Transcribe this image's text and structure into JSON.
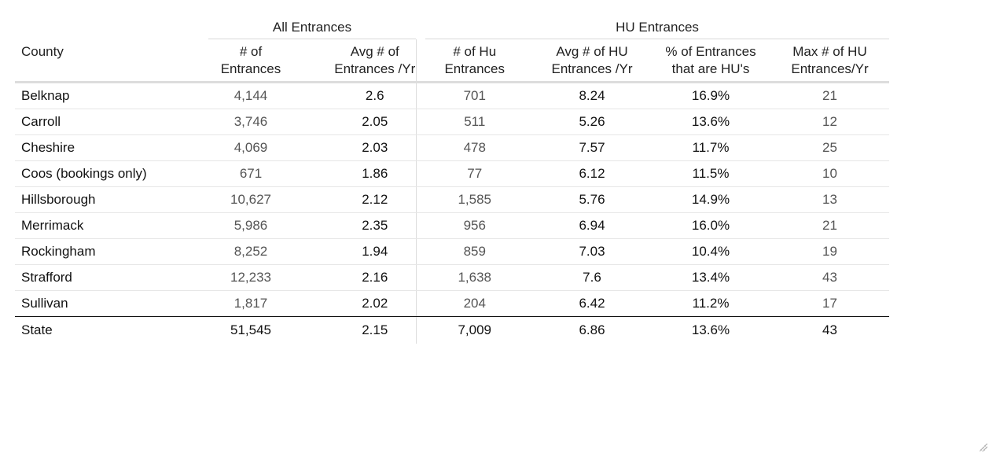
{
  "chart_data": {
    "type": "table",
    "column_groups": [
      {
        "label": "All Entrances"
      },
      {
        "label": "HU Entrances"
      }
    ],
    "columns": [
      {
        "lines": [
          "County"
        ]
      },
      {
        "lines": [
          "# of",
          "Entrances"
        ]
      },
      {
        "lines": [
          "Avg # of",
          "Entrances /Yr"
        ]
      },
      {
        "lines": [
          "# of Hu",
          "Entrances"
        ]
      },
      {
        "lines": [
          "Avg # of HU",
          "Entrances /Yr"
        ]
      },
      {
        "lines": [
          "% of Entrances",
          "that are HU's"
        ]
      },
      {
        "lines": [
          "Max # of HU",
          "Entrances/Yr"
        ]
      }
    ],
    "rows": [
      {
        "county": "Belknap",
        "entrances": "4,144",
        "avg_entrances_yr": "2.6",
        "hu_entrances": "701",
        "avg_hu_entrances_yr": "8.24",
        "pct_hu": "16.9%",
        "max_hu_yr": "21"
      },
      {
        "county": "Carroll",
        "entrances": "3,746",
        "avg_entrances_yr": "2.05",
        "hu_entrances": "511",
        "avg_hu_entrances_yr": "5.26",
        "pct_hu": "13.6%",
        "max_hu_yr": "12"
      },
      {
        "county": "Cheshire",
        "entrances": "4,069",
        "avg_entrances_yr": "2.03",
        "hu_entrances": "478",
        "avg_hu_entrances_yr": "7.57",
        "pct_hu": "11.7%",
        "max_hu_yr": "25"
      },
      {
        "county": "Coos (bookings only)",
        "entrances": "671",
        "avg_entrances_yr": "1.86",
        "hu_entrances": "77",
        "avg_hu_entrances_yr": "6.12",
        "pct_hu": "11.5%",
        "max_hu_yr": "10"
      },
      {
        "county": "Hillsborough",
        "entrances": "10,627",
        "avg_entrances_yr": "2.12",
        "hu_entrances": "1,585",
        "avg_hu_entrances_yr": "5.76",
        "pct_hu": "14.9%",
        "max_hu_yr": "13"
      },
      {
        "county": "Merrimack",
        "entrances": "5,986",
        "avg_entrances_yr": "2.35",
        "hu_entrances": "956",
        "avg_hu_entrances_yr": "6.94",
        "pct_hu": "16.0%",
        "max_hu_yr": "21"
      },
      {
        "county": "Rockingham",
        "entrances": "8,252",
        "avg_entrances_yr": "1.94",
        "hu_entrances": "859",
        "avg_hu_entrances_yr": "7.03",
        "pct_hu": "10.4%",
        "max_hu_yr": "19"
      },
      {
        "county": "Strafford",
        "entrances": "12,233",
        "avg_entrances_yr": "2.16",
        "hu_entrances": "1,638",
        "avg_hu_entrances_yr": "7.6",
        "pct_hu": "13.4%",
        "max_hu_yr": "43"
      },
      {
        "county": "Sullivan",
        "entrances": "1,817",
        "avg_entrances_yr": "2.02",
        "hu_entrances": "204",
        "avg_hu_entrances_yr": "6.42",
        "pct_hu": "11.2%",
        "max_hu_yr": "17"
      }
    ],
    "total": {
      "county": "State",
      "entrances": "51,545",
      "avg_entrances_yr": "2.15",
      "hu_entrances": "7,009",
      "avg_hu_entrances_yr": "6.86",
      "pct_hu": "13.6%",
      "max_hu_yr": "43"
    }
  }
}
